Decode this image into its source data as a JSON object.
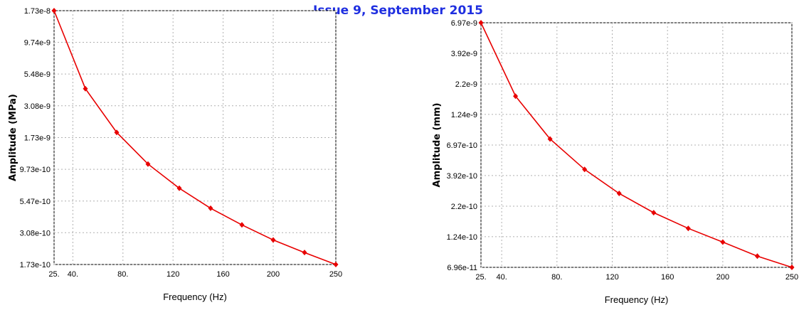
{
  "header_text": "Issue 9, September 2015",
  "chart_data": [
    {
      "type": "line",
      "xlabel": "Frequency (Hz)",
      "ylabel": "Amplitude (MPa)",
      "scale_y": "log",
      "grid": true,
      "color": "#e80000",
      "x_ticks": [
        "25.",
        "40.",
        "80.",
        "120",
        "160",
        "200",
        "250"
      ],
      "x_tick_values": [
        25,
        40,
        80,
        120,
        160,
        200,
        250
      ],
      "y_ticks": [
        "1.73e-8",
        "9.74e-9",
        "5.48e-9",
        "3.08e-9",
        "1.73e-9",
        "9.73e-10",
        "5.47e-10",
        "3.08e-10",
        "1.73e-10"
      ],
      "y_tick_values": [
        1.73e-08,
        9.74e-09,
        5.48e-09,
        3.08e-09,
        1.73e-09,
        9.73e-10,
        5.47e-10,
        3.08e-10,
        1.73e-10
      ],
      "xlim": [
        25,
        250
      ],
      "ylim": [
        1.73e-10,
        1.73e-08
      ],
      "x": [
        25,
        50,
        75,
        100,
        125,
        150,
        175,
        200,
        225,
        250
      ],
      "y": [
        1.73e-08,
        4.2e-09,
        1.9e-09,
        1.07e-09,
        6.9e-10,
        4.8e-10,
        3.55e-10,
        2.7e-10,
        2.15e-10,
        1.73e-10
      ]
    },
    {
      "type": "line",
      "xlabel": "Frequency (Hz)",
      "ylabel": "Amplitude (mm)",
      "scale_y": "log",
      "grid": true,
      "color": "#e80000",
      "x_ticks": [
        "25.",
        "40.",
        "80.",
        "120",
        "160",
        "200",
        "250"
      ],
      "x_tick_values": [
        25,
        40,
        80,
        120,
        160,
        200,
        250
      ],
      "y_ticks": [
        "6.97e-9",
        "3.92e-9",
        "2.2e-9",
        "1.24e-9",
        "6.97e-10",
        "3.92e-10",
        "2.2e-10",
        "1.24e-10",
        "6.96e-11"
      ],
      "y_tick_values": [
        6.97e-09,
        3.92e-09,
        2.2e-09,
        1.24e-09,
        6.97e-10,
        3.92e-10,
        2.2e-10,
        1.24e-10,
        6.96e-11
      ],
      "xlim": [
        25,
        250
      ],
      "ylim": [
        6.96e-11,
        6.97e-09
      ],
      "x": [
        25,
        50,
        75,
        100,
        125,
        150,
        175,
        200,
        225,
        250
      ],
      "y": [
        6.97e-09,
        1.75e-09,
        7.8e-10,
        4.4e-10,
        2.8e-10,
        1.95e-10,
        1.45e-10,
        1.12e-10,
        8.6e-11,
        6.96e-11
      ]
    }
  ]
}
